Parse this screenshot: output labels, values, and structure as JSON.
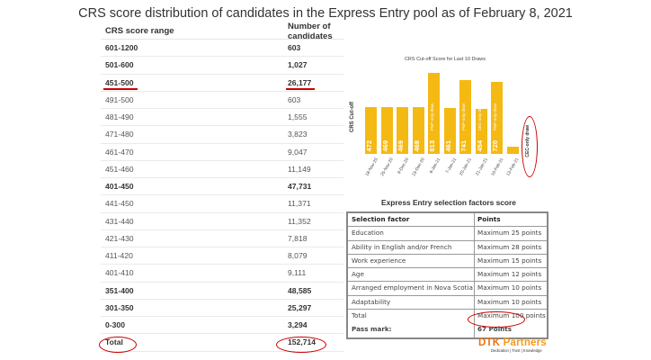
{
  "title": "CRS score distribution of candidates in the Express Entry pool as of February 8, 2021",
  "crs_table": {
    "headers": [
      "CRS score range",
      "Number of candidates"
    ],
    "rows": [
      {
        "range": "601-1200",
        "count": "603",
        "bold": true
      },
      {
        "range": "501-600",
        "count": "1,027",
        "bold": true
      },
      {
        "range": "451-500",
        "count": "26,177",
        "bold": true
      },
      {
        "range": "491-500",
        "count": "603",
        "bold": false
      },
      {
        "range": "481-490",
        "count": "1,555",
        "bold": false
      },
      {
        "range": "471-480",
        "count": "3,823",
        "bold": false
      },
      {
        "range": "461-470",
        "count": "9,047",
        "bold": false
      },
      {
        "range": "451-460",
        "count": "11,149",
        "bold": false
      },
      {
        "range": "401-450",
        "count": "47,731",
        "bold": true
      },
      {
        "range": "441-450",
        "count": "11,371",
        "bold": false
      },
      {
        "range": "431-440",
        "count": "11,352",
        "bold": false
      },
      {
        "range": "421-430",
        "count": "7,818",
        "bold": false
      },
      {
        "range": "411-420",
        "count": "8,079",
        "bold": false
      },
      {
        "range": "401-410",
        "count": "9,111",
        "bold": false
      },
      {
        "range": "351-400",
        "count": "48,585",
        "bold": true
      },
      {
        "range": "301-350",
        "count": "25,297",
        "bold": true
      },
      {
        "range": "0-300",
        "count": "3,294",
        "bold": true
      },
      {
        "range": "Total",
        "count": "152,714",
        "bold": true
      }
    ]
  },
  "chart_data": {
    "type": "bar",
    "title": "CRS Cut-off Score for Last 10 Draws",
    "ylabel": "CRS Cut-off",
    "categories": [
      "18-Nov-20",
      "25-Nov-20",
      "9-Dec-20",
      "23-Dec-20",
      "6-Jan-21",
      "7-Jan-21",
      "20-Jan-21",
      "21-Jan-21",
      "10-Feb-21",
      "13-Feb-21"
    ],
    "values": [
      472,
      469,
      469,
      468,
      813,
      461,
      741,
      454,
      720,
      75
    ],
    "value_labels": [
      "472",
      "469",
      "469",
      "468",
      "813",
      "461",
      "741",
      "454",
      "720",
      "75"
    ],
    "notes": [
      "",
      "",
      "",
      "",
      "PNP-only draw",
      "",
      "PNP-only draw",
      "CEC-only draw",
      "PNP-only draw",
      ""
    ],
    "annotation": "CEC-only draw",
    "ylim": [
      0,
      850
    ],
    "bar_color": "#f5b914"
  },
  "selection": {
    "title": "Express Entry selection factors score",
    "headers": [
      "Selection factor",
      "Points"
    ],
    "rows": [
      [
        "Education",
        "Maximum 25 points"
      ],
      [
        "Ability in English and/or French",
        "Maximum 28 points"
      ],
      [
        "Work experience",
        "Maximum 15 points"
      ],
      [
        "Age",
        "Maximum 12 points"
      ],
      [
        "Arranged employment in Nova Scotia",
        "Maximum 10 points"
      ],
      [
        "Adaptability",
        "Maximum 10 points"
      ],
      [
        "Total",
        "Maximum 100 points"
      ]
    ],
    "pass_label": "Pass mark:",
    "pass_value": "67 Points"
  },
  "logo": {
    "name_a": "DTK",
    "name_b": " Partners",
    "tagline": "Dedication | Trust | Knowledge"
  },
  "colors": {
    "accent_red": "#cc0000",
    "bar": "#f5b914",
    "logo_orange": "#f39a1d"
  }
}
